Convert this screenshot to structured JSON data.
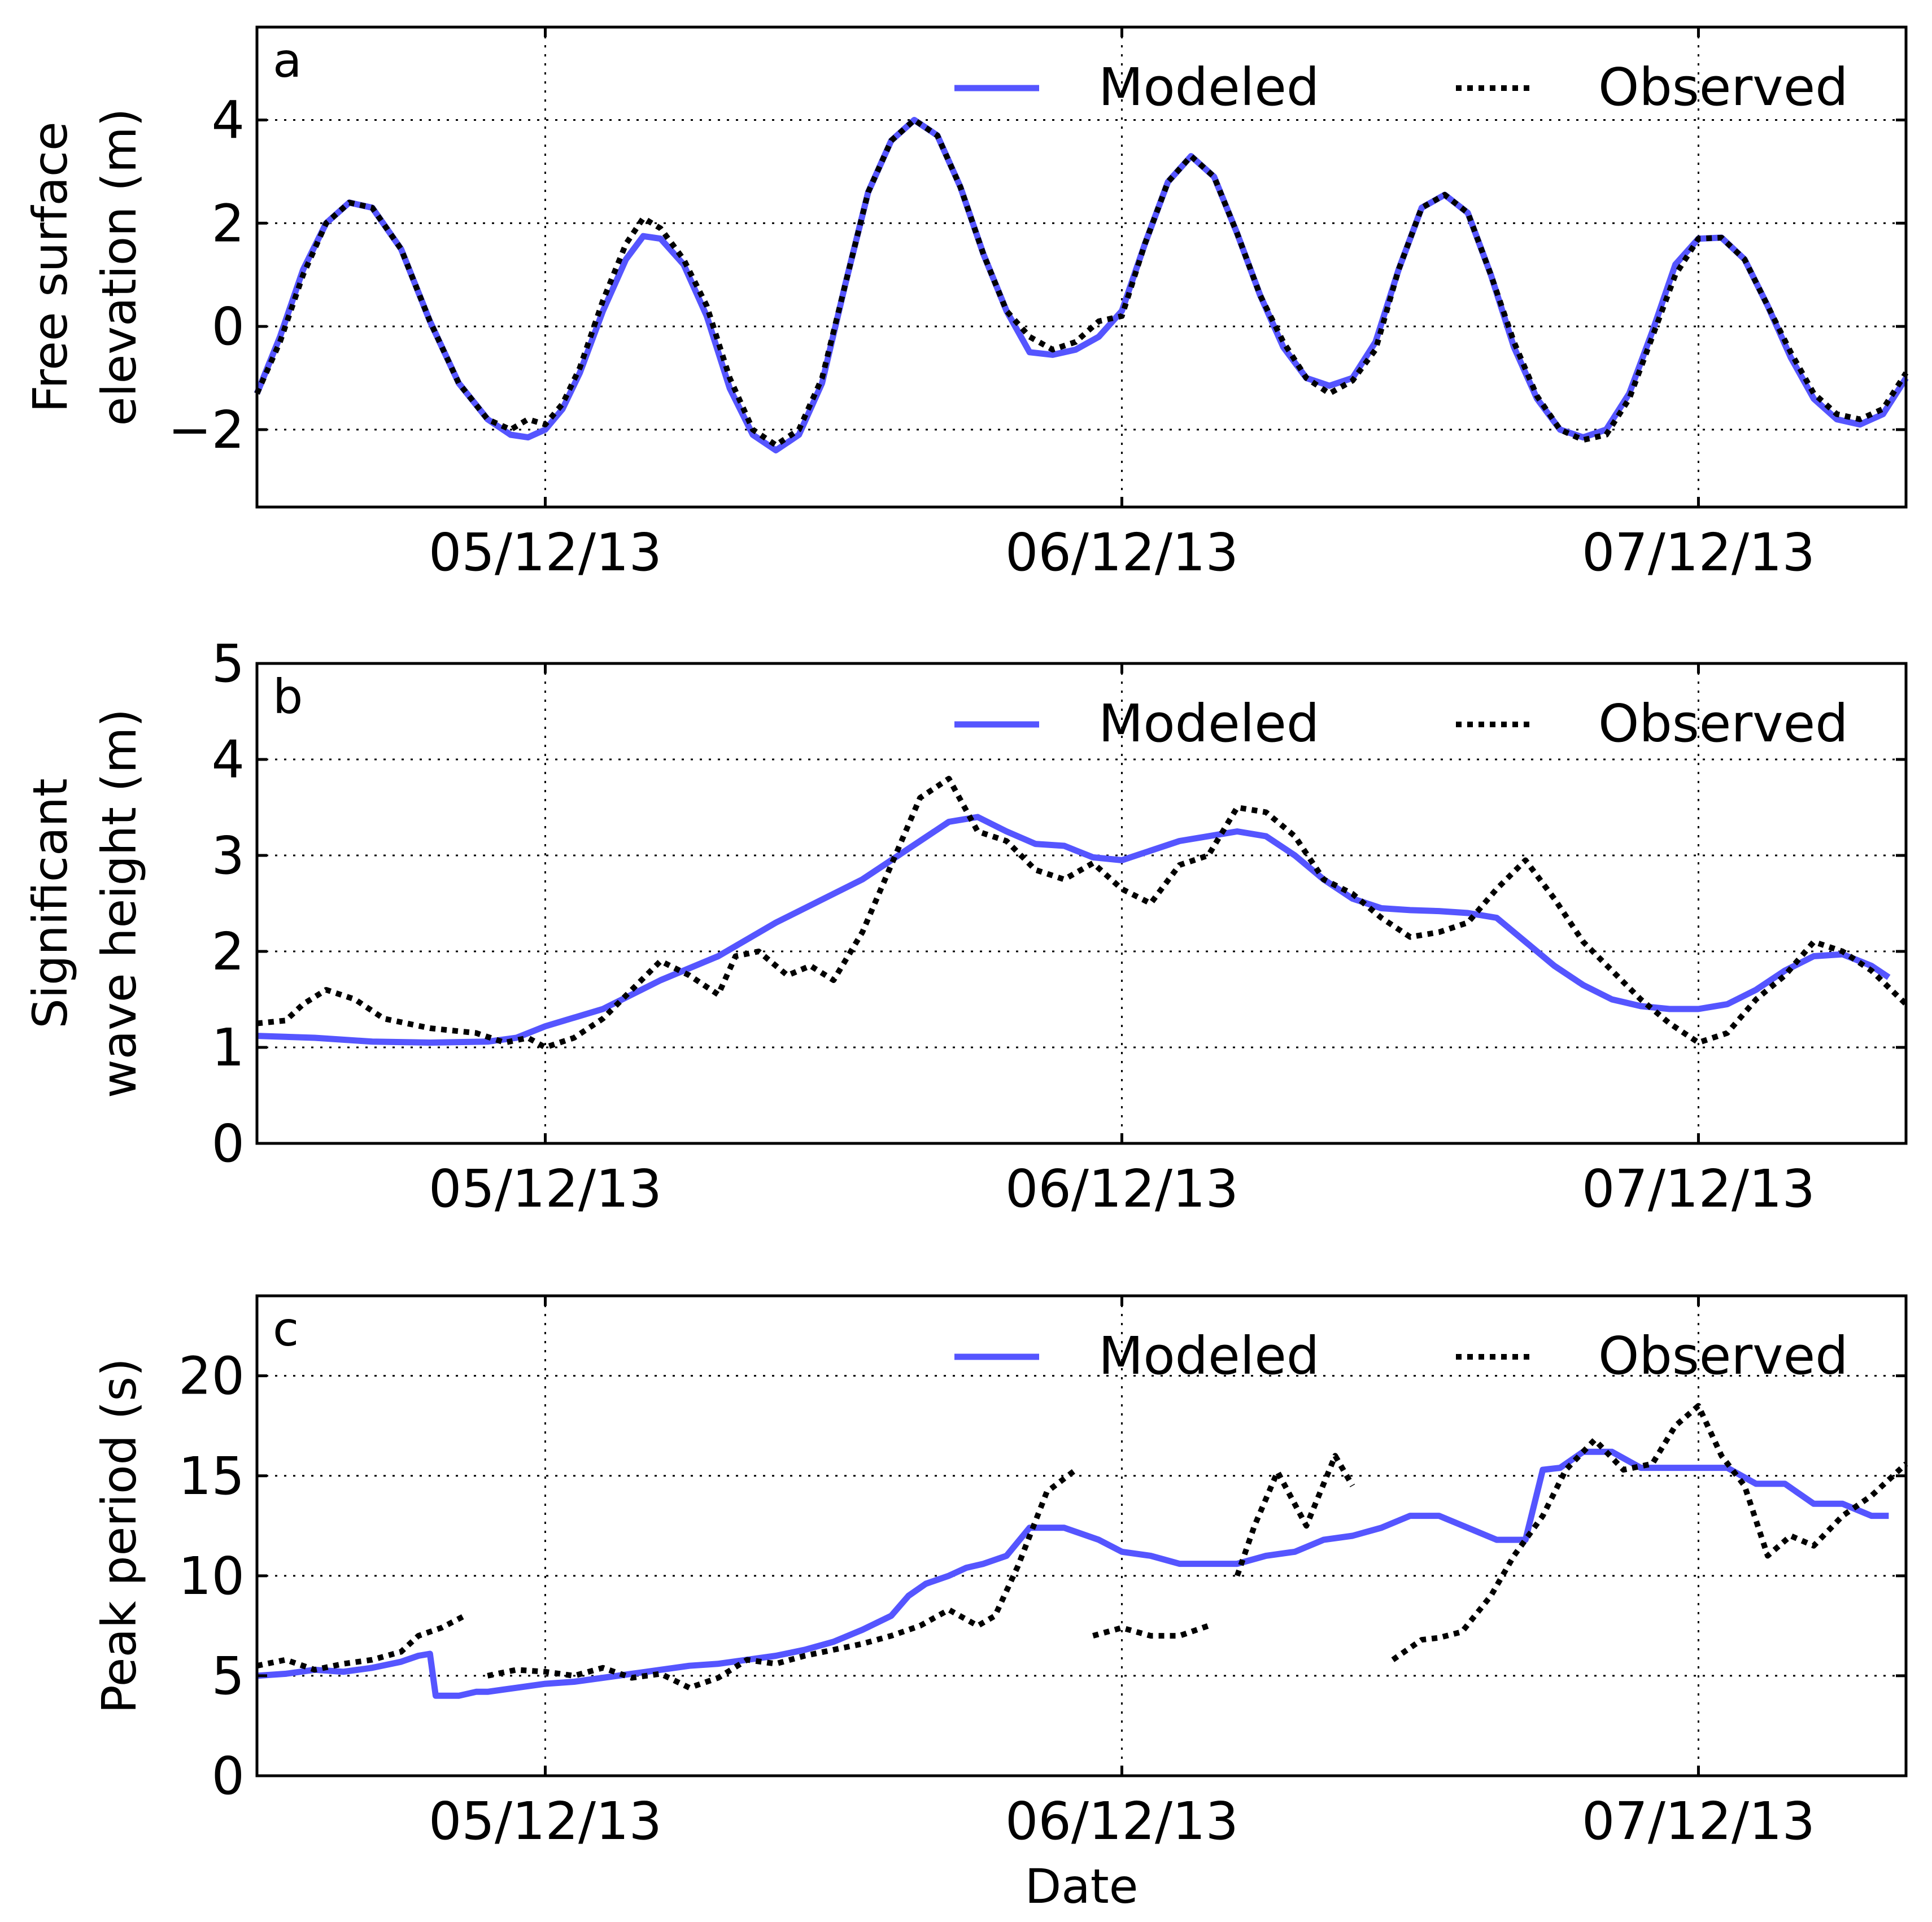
{
  "figure": {
    "xlabel": "Date"
  },
  "colors": {
    "modeled": "#5555ff",
    "observed": "#000000"
  },
  "chart_data": [
    {
      "type": "line",
      "panel": "a",
      "ylabel_lines": [
        "Free surface",
        "elevation (m)"
      ],
      "ylim": [
        -3.5,
        5.8
      ],
      "yticks": [
        -2,
        0,
        2,
        4
      ],
      "ytick_labels": [
        "−2",
        "0",
        "2",
        "4"
      ],
      "xlim": [
        -0.5,
        2.36
      ],
      "xticks": [
        0,
        1,
        2
      ],
      "xtick_labels": [
        "05/12/13",
        "06/12/13",
        "07/12/13"
      ],
      "legend": {
        "placement": "top-right",
        "entries": [
          "Modeled",
          "Observed"
        ]
      },
      "series": [
        {
          "name": "Modeled",
          "style": "solid",
          "x": [
            -0.5,
            -0.46,
            -0.42,
            -0.38,
            -0.34,
            -0.3,
            -0.25,
            -0.2,
            -0.15,
            -0.1,
            -0.06,
            -0.03,
            0.0,
            0.03,
            0.06,
            0.1,
            0.14,
            0.17,
            0.2,
            0.24,
            0.28,
            0.32,
            0.36,
            0.4,
            0.44,
            0.48,
            0.52,
            0.56,
            0.6,
            0.64,
            0.68,
            0.72,
            0.76,
            0.8,
            0.84,
            0.88,
            0.92,
            0.96,
            1.0,
            1.04,
            1.08,
            1.12,
            1.16,
            1.2,
            1.24,
            1.28,
            1.32,
            1.36,
            1.4,
            1.44,
            1.48,
            1.52,
            1.56,
            1.6,
            1.64,
            1.68,
            1.72,
            1.76,
            1.8,
            1.84,
            1.88,
            1.92,
            1.96,
            2.0,
            2.04,
            2.08,
            2.12,
            2.16,
            2.2,
            2.24,
            2.28,
            2.32,
            2.36
          ],
          "y": [
            -1.3,
            -0.2,
            1.1,
            2.0,
            2.4,
            2.3,
            1.5,
            0.1,
            -1.1,
            -1.8,
            -2.1,
            -2.15,
            -2.0,
            -1.6,
            -0.9,
            0.3,
            1.3,
            1.75,
            1.7,
            1.2,
            0.2,
            -1.2,
            -2.1,
            -2.4,
            -2.1,
            -1.1,
            0.8,
            2.6,
            3.6,
            4.0,
            3.7,
            2.7,
            1.4,
            0.3,
            -0.5,
            -0.55,
            -0.45,
            -0.2,
            0.3,
            1.6,
            2.8,
            3.3,
            2.9,
            1.8,
            0.6,
            -0.4,
            -1.0,
            -1.15,
            -1.0,
            -0.3,
            1.1,
            2.3,
            2.55,
            2.2,
            1.0,
            -0.4,
            -1.4,
            -2.0,
            -2.15,
            -2.0,
            -1.3,
            -0.1,
            1.2,
            1.7,
            1.72,
            1.3,
            0.4,
            -0.6,
            -1.4,
            -1.8,
            -1.9,
            -1.7,
            -1.0
          ]
        },
        {
          "name": "Observed",
          "style": "dotted",
          "x": [
            -0.5,
            -0.46,
            -0.42,
            -0.38,
            -0.34,
            -0.3,
            -0.25,
            -0.2,
            -0.15,
            -0.1,
            -0.06,
            -0.03,
            0.0,
            0.03,
            0.06,
            0.1,
            0.14,
            0.17,
            0.2,
            0.24,
            0.28,
            0.32,
            0.36,
            0.4,
            0.44,
            0.48,
            0.52,
            0.56,
            0.6,
            0.64,
            0.68,
            0.72,
            0.76,
            0.8,
            0.84,
            0.88,
            0.92,
            0.96,
            1.0,
            1.04,
            1.08,
            1.12,
            1.16,
            1.2,
            1.24,
            1.28,
            1.32,
            1.36,
            1.4,
            1.44,
            1.48,
            1.52,
            1.56,
            1.6,
            1.64,
            1.68,
            1.72,
            1.76,
            1.8,
            1.84,
            1.88,
            1.92,
            1.96,
            2.0,
            2.04,
            2.08,
            2.12,
            2.16,
            2.2,
            2.24,
            2.28,
            2.32,
            2.36
          ],
          "y": [
            -1.3,
            -0.3,
            1.0,
            2.0,
            2.4,
            2.3,
            1.5,
            0.1,
            -1.1,
            -1.8,
            -2.0,
            -1.8,
            -1.9,
            -1.5,
            -0.8,
            0.5,
            1.6,
            2.1,
            1.9,
            1.3,
            0.4,
            -1.0,
            -2.0,
            -2.3,
            -2.0,
            -1.0,
            0.8,
            2.6,
            3.6,
            4.0,
            3.7,
            2.7,
            1.4,
            0.3,
            -0.2,
            -0.45,
            -0.3,
            0.1,
            0.2,
            1.6,
            2.8,
            3.3,
            2.9,
            1.8,
            0.6,
            -0.3,
            -1.0,
            -1.3,
            -1.05,
            -0.45,
            1.1,
            2.3,
            2.55,
            2.2,
            1.0,
            -0.3,
            -1.35,
            -2.0,
            -2.2,
            -2.1,
            -1.4,
            -0.2,
            1.0,
            1.7,
            1.72,
            1.3,
            0.4,
            -0.5,
            -1.3,
            -1.7,
            -1.8,
            -1.6,
            -0.9
          ]
        }
      ]
    },
    {
      "type": "line",
      "panel": "b",
      "ylabel_lines": [
        "Significant",
        "wave height (m)"
      ],
      "ylim": [
        0,
        5
      ],
      "yticks": [
        0,
        1,
        2,
        3,
        4,
        5
      ],
      "ytick_labels": [
        "0",
        "1",
        "2",
        "3",
        "4",
        "5"
      ],
      "xlim": [
        -0.5,
        2.36
      ],
      "xticks": [
        0,
        1,
        2
      ],
      "xtick_labels": [
        "05/12/13",
        "06/12/13",
        "07/12/13"
      ],
      "legend": {
        "placement": "top-right",
        "entries": [
          "Modeled",
          "Observed"
        ]
      },
      "series": [
        {
          "name": "Modeled",
          "style": "solid",
          "x": [
            -0.5,
            -0.4,
            -0.3,
            -0.2,
            -0.1,
            -0.05,
            0.0,
            0.1,
            0.2,
            0.3,
            0.4,
            0.5,
            0.55,
            0.6,
            0.65,
            0.7,
            0.75,
            0.8,
            0.85,
            0.9,
            0.95,
            1.0,
            1.05,
            1.1,
            1.15,
            1.2,
            1.25,
            1.3,
            1.35,
            1.4,
            1.45,
            1.5,
            1.55,
            1.6,
            1.65,
            1.7,
            1.75,
            1.8,
            1.85,
            1.9,
            1.95,
            2.0,
            2.05,
            2.1,
            2.15,
            2.2,
            2.25,
            2.3,
            2.33
          ],
          "y": [
            1.12,
            1.1,
            1.06,
            1.05,
            1.06,
            1.1,
            1.22,
            1.4,
            1.7,
            1.95,
            2.3,
            2.6,
            2.75,
            2.95,
            3.15,
            3.35,
            3.4,
            3.25,
            3.12,
            3.1,
            2.98,
            2.95,
            3.05,
            3.15,
            3.2,
            3.25,
            3.2,
            3.0,
            2.75,
            2.55,
            2.45,
            2.43,
            2.42,
            2.4,
            2.35,
            2.1,
            1.85,
            1.65,
            1.5,
            1.43,
            1.4,
            1.4,
            1.45,
            1.6,
            1.8,
            1.95,
            1.97,
            1.85,
            1.73
          ]
        },
        {
          "name": "Observed",
          "style": "dotted",
          "x": [
            -0.5,
            -0.45,
            -0.42,
            -0.38,
            -0.33,
            -0.28,
            -0.2,
            -0.12,
            -0.07,
            -0.03,
            0.0,
            0.05,
            0.1,
            0.15,
            0.2,
            0.25,
            0.3,
            0.33,
            0.37,
            0.42,
            0.46,
            0.5,
            0.55,
            0.6,
            0.65,
            0.7,
            0.75,
            0.8,
            0.85,
            0.9,
            0.95,
            1.0,
            1.05,
            1.1,
            1.15,
            1.2,
            1.25,
            1.3,
            1.35,
            1.4,
            1.45,
            1.5,
            1.55,
            1.6,
            1.65,
            1.7,
            1.75,
            1.8,
            1.85,
            1.9,
            1.95,
            2.0,
            2.05,
            2.1,
            2.15,
            2.2,
            2.25,
            2.3,
            2.36
          ],
          "y": [
            1.25,
            1.28,
            1.45,
            1.6,
            1.5,
            1.3,
            1.2,
            1.15,
            1.05,
            1.1,
            1.0,
            1.1,
            1.3,
            1.6,
            1.9,
            1.75,
            1.55,
            1.95,
            2.0,
            1.75,
            1.85,
            1.7,
            2.2,
            2.9,
            3.6,
            3.8,
            3.25,
            3.15,
            2.85,
            2.75,
            2.92,
            2.65,
            2.5,
            2.9,
            3.0,
            3.5,
            3.45,
            3.2,
            2.75,
            2.6,
            2.35,
            2.15,
            2.2,
            2.3,
            2.65,
            2.95,
            2.55,
            2.1,
            1.8,
            1.5,
            1.25,
            1.05,
            1.15,
            1.5,
            1.75,
            2.1,
            2.0,
            1.8,
            1.45
          ]
        }
      ]
    },
    {
      "type": "line",
      "panel": "c",
      "ylabel_lines": [
        "Peak period (s)"
      ],
      "ylim": [
        0,
        24
      ],
      "yticks": [
        0,
        5,
        10,
        15,
        20
      ],
      "ytick_labels": [
        "0",
        "5",
        "10",
        "15",
        "20"
      ],
      "xlim": [
        -0.5,
        2.36
      ],
      "xticks": [
        0,
        1,
        2
      ],
      "xtick_labels": [
        "05/12/13",
        "06/12/13",
        "07/12/13"
      ],
      "legend": {
        "placement": "top-right",
        "entries": [
          "Modeled",
          "Observed"
        ]
      },
      "series": [
        {
          "name": "Modeled",
          "style": "solid",
          "x": [
            -0.5,
            -0.45,
            -0.4,
            -0.35,
            -0.3,
            -0.25,
            -0.22,
            -0.2,
            -0.19,
            -0.15,
            -0.12,
            -0.1,
            -0.05,
            0.0,
            0.05,
            0.1,
            0.15,
            0.2,
            0.25,
            0.3,
            0.35,
            0.4,
            0.45,
            0.5,
            0.55,
            0.6,
            0.63,
            0.66,
            0.7,
            0.73,
            0.76,
            0.8,
            0.84,
            0.9,
            0.96,
            1.0,
            1.05,
            1.1,
            1.15,
            1.2,
            1.25,
            1.3,
            1.35,
            1.4,
            1.45,
            1.5,
            1.55,
            1.6,
            1.65,
            1.7,
            1.73,
            1.76,
            1.8,
            1.85,
            1.9,
            1.95,
            2.0,
            2.05,
            2.1,
            2.15,
            2.2,
            2.25,
            2.3,
            2.33
          ],
          "y": [
            5.0,
            5.1,
            5.3,
            5.2,
            5.4,
            5.7,
            6.0,
            6.1,
            4.0,
            4.0,
            4.2,
            4.2,
            4.4,
            4.6,
            4.7,
            4.9,
            5.1,
            5.3,
            5.5,
            5.6,
            5.8,
            6.0,
            6.3,
            6.7,
            7.3,
            8.0,
            9.0,
            9.6,
            10.0,
            10.4,
            10.6,
            11.0,
            12.4,
            12.4,
            11.8,
            11.2,
            11.0,
            10.6,
            10.6,
            10.6,
            11.0,
            11.2,
            11.8,
            12.0,
            12.4,
            13.0,
            13.0,
            12.4,
            11.8,
            11.8,
            15.3,
            15.4,
            16.2,
            16.2,
            15.4,
            15.4,
            15.4,
            15.4,
            14.6,
            14.6,
            13.6,
            13.6,
            13.0,
            13.0
          ]
        },
        {
          "name": "Observed",
          "style": "dotted",
          "segments": [
            {
              "x": [
                -0.5,
                -0.45,
                -0.4,
                -0.35,
                -0.3,
                -0.25,
                -0.22,
                -0.18,
                -0.14
              ],
              "y": [
                5.5,
                5.8,
                5.3,
                5.6,
                5.8,
                6.2,
                7.0,
                7.4,
                8.0
              ]
            },
            {
              "x": [
                -0.1,
                -0.05,
                0.0,
                0.05,
                0.1,
                0.15,
                0.2,
                0.25,
                0.3,
                0.35,
                0.4,
                0.45,
                0.5,
                0.55,
                0.6,
                0.65,
                0.7,
                0.75,
                0.78,
                0.82,
                0.87,
                0.92
              ],
              "y": [
                5.0,
                5.3,
                5.2,
                5.0,
                5.4,
                4.9,
                5.1,
                4.4,
                4.9,
                5.8,
                5.6,
                6.0,
                6.3,
                6.6,
                7.0,
                7.5,
                8.3,
                7.5,
                8.0,
                10.5,
                14.2,
                15.3
              ]
            },
            {
              "x": [
                0.95,
                1.0,
                1.05,
                1.1,
                1.15
              ],
              "y": [
                7.0,
                7.4,
                7.0,
                7.0,
                7.5
              ]
            },
            {
              "x": [
                1.2,
                1.23,
                1.27,
                1.32,
                1.37,
                1.4
              ],
              "y": [
                10.0,
                12.5,
                15.2,
                12.5,
                16.0,
                14.5
              ]
            },
            {
              "x": [
                1.47,
                1.52,
                1.55,
                1.59,
                1.64,
                1.68,
                1.73,
                1.77,
                1.82,
                1.87,
                1.92,
                1.96,
                2.0,
                2.04,
                2.08,
                2.12,
                2.16,
                2.2,
                2.25,
                2.3,
                2.36
              ],
              "y": [
                5.8,
                6.8,
                6.9,
                7.2,
                9.0,
                11.0,
                13.0,
                15.3,
                16.8,
                15.3,
                15.6,
                17.5,
                18.5,
                16.0,
                14.5,
                11.0,
                12.0,
                11.5,
                13.0,
                14.0,
                15.6
              ]
            }
          ]
        }
      ]
    }
  ]
}
